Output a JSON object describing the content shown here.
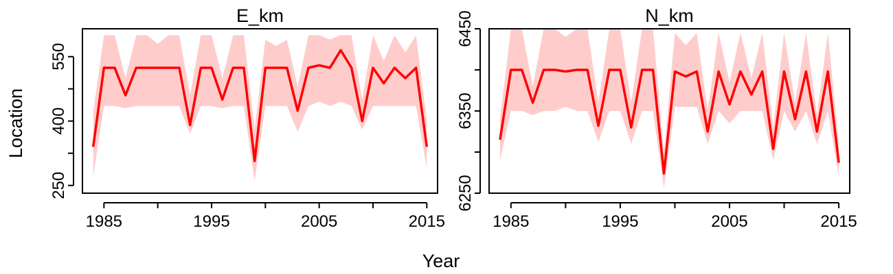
{
  "figure": {
    "xlabel": "Year",
    "ylabel": "Location"
  },
  "colors": {
    "line": "#ff0000",
    "band": "#ffcccc"
  },
  "chart_data": [
    {
      "type": "line",
      "title": "E_km",
      "xlim": [
        1983,
        2016
      ],
      "ylim": [
        232,
        615
      ],
      "x_ticks": [
        1985,
        1990,
        1995,
        2000,
        2005,
        2010,
        2015
      ],
      "x_tick_labels": [
        "1985",
        "",
        "1995",
        "",
        "2005",
        "",
        "2015"
      ],
      "y_ticks": [
        250,
        325,
        400,
        475,
        550
      ],
      "y_tick_labels": [
        "250",
        "",
        "400",
        "",
        "550"
      ],
      "x": [
        1984,
        1985,
        1986,
        1987,
        1988,
        1989,
        1990,
        1991,
        1992,
        1993,
        1994,
        1995,
        1996,
        1997,
        1998,
        1999,
        2000,
        2001,
        2002,
        2003,
        2004,
        2005,
        2006,
        2007,
        2008,
        2009,
        2010,
        2011,
        2012,
        2013,
        2014,
        2015
      ],
      "series": [
        {
          "values": [
            340,
            524,
            524,
            460,
            524,
            524,
            524,
            524,
            524,
            391,
            524,
            524,
            450,
            524,
            524,
            307,
            524,
            524,
            524,
            424,
            524,
            530,
            524,
            565,
            524,
            400,
            524,
            488,
            524,
            500,
            524,
            340
          ],
          "lower": [
            270,
            435,
            435,
            430,
            435,
            435,
            435,
            435,
            435,
            370,
            435,
            435,
            430,
            435,
            435,
            260,
            435,
            435,
            435,
            375,
            435,
            445,
            435,
            445,
            435,
            380,
            435,
            435,
            435,
            435,
            435,
            290
          ],
          "upper": [
            420,
            600,
            600,
            500,
            600,
            600,
            580,
            600,
            600,
            460,
            600,
            600,
            500,
            600,
            600,
            380,
            590,
            575,
            590,
            480,
            600,
            600,
            590,
            600,
            600,
            450,
            600,
            540,
            600,
            560,
            600,
            400
          ]
        }
      ]
    },
    {
      "type": "line",
      "title": "N_km",
      "xlim": [
        1983,
        2016
      ],
      "ylim": [
        6250,
        6450
      ],
      "x_ticks": [
        1985,
        1990,
        1995,
        2000,
        2005,
        2010,
        2015
      ],
      "x_tick_labels": [
        "1985",
        "",
        "1995",
        "",
        "2005",
        "",
        "2015"
      ],
      "y_ticks": [
        6250,
        6300,
        6350,
        6400,
        6450
      ],
      "y_tick_labels": [
        "6250",
        "",
        "6350",
        "",
        "6450"
      ],
      "x": [
        1984,
        1985,
        1986,
        1987,
        1988,
        1989,
        1990,
        1991,
        1992,
        1993,
        1994,
        1995,
        1996,
        1997,
        1998,
        1999,
        2000,
        2001,
        2002,
        2003,
        2004,
        2005,
        2006,
        2007,
        2008,
        2009,
        2010,
        2011,
        2012,
        2013,
        2014,
        2015
      ],
      "series": [
        {
          "values": [
            6315,
            6400,
            6400,
            6360,
            6400,
            6400,
            6398,
            6400,
            6400,
            6332,
            6400,
            6400,
            6330,
            6400,
            6400,
            6274,
            6398,
            6392,
            6398,
            6325,
            6398,
            6358,
            6398,
            6370,
            6398,
            6304,
            6398,
            6340,
            6398,
            6325,
            6398,
            6287
          ],
          "lower": [
            6290,
            6350,
            6350,
            6345,
            6350,
            6350,
            6355,
            6350,
            6350,
            6312,
            6350,
            6350,
            6310,
            6350,
            6350,
            6256,
            6355,
            6355,
            6355,
            6310,
            6350,
            6335,
            6350,
            6350,
            6350,
            6290,
            6350,
            6325,
            6350,
            6310,
            6350,
            6270
          ],
          "upper": [
            6340,
            6450,
            6450,
            6380,
            6450,
            6450,
            6440,
            6450,
            6450,
            6360,
            6450,
            6450,
            6360,
            6450,
            6450,
            6300,
            6445,
            6430,
            6445,
            6350,
            6445,
            6385,
            6445,
            6390,
            6445,
            6330,
            6445,
            6360,
            6445,
            6345,
            6445,
            6310
          ]
        }
      ]
    }
  ]
}
